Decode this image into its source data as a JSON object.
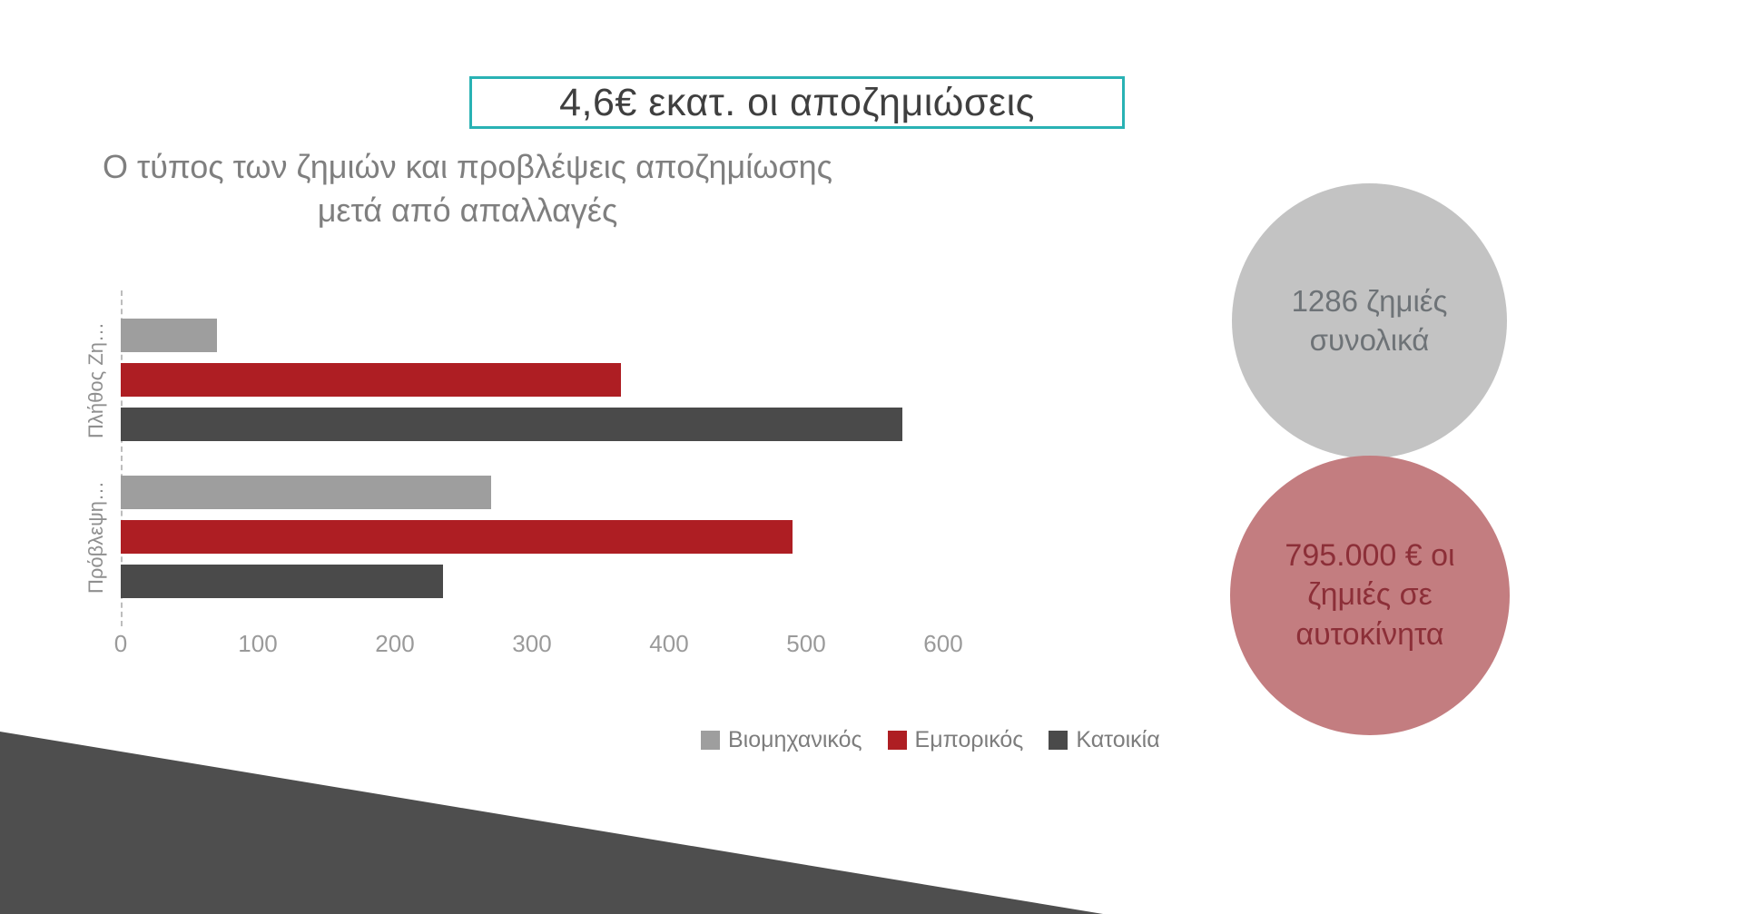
{
  "slide": {
    "title": "4,6€ εκατ. οι αποζημιώσεις",
    "subtitle_line1": "Ο τύπος των ζημιών και προβλέψεις αποζημίωσης",
    "subtitle_line2": "μετά από απαλλαγές"
  },
  "chart_data": {
    "type": "bar",
    "orientation": "horizontal",
    "title": "Ο τύπος των ζημιών και προβλέψεις αποζημίωσης μετά από απαλλαγές",
    "categories": [
      "Πλήθος Ζη…",
      "Πρόβλεψη…"
    ],
    "series": [
      {
        "name": "Βιομηχανικός",
        "color": "#9e9e9e",
        "values": [
          70,
          270
        ]
      },
      {
        "name": "Εμπορικός",
        "color": "#ae1e23",
        "values": [
          365,
          490
        ]
      },
      {
        "name": "Κατοικία",
        "color": "#4a4a4a",
        "values": [
          570,
          235
        ]
      }
    ],
    "xticks": [
      0,
      100,
      200,
      300,
      400,
      500,
      600
    ],
    "xlim": [
      0,
      650
    ],
    "grid": false,
    "legend_position": "bottom-right",
    "y_axis_style": "dashed"
  },
  "callouts": {
    "gray_circle": {
      "line1": "1286 ζημιές",
      "line2": "συνολικά",
      "fill": "#c3c3c3",
      "text_color": "#6e7377"
    },
    "red_circle": {
      "line1": "795.000 € οι",
      "line2": "ζημιές σε",
      "line3": "αυτοκίνητα",
      "fill": "#c37d80",
      "text_color": "#8c2f38"
    }
  },
  "colors": {
    "title_box_border": "#29b2b4",
    "title_text": "#3f3f3f",
    "subtitle_text": "#7f7f7f",
    "axis_text": "#9a9a9a",
    "triangle": "#4e4e4e"
  }
}
